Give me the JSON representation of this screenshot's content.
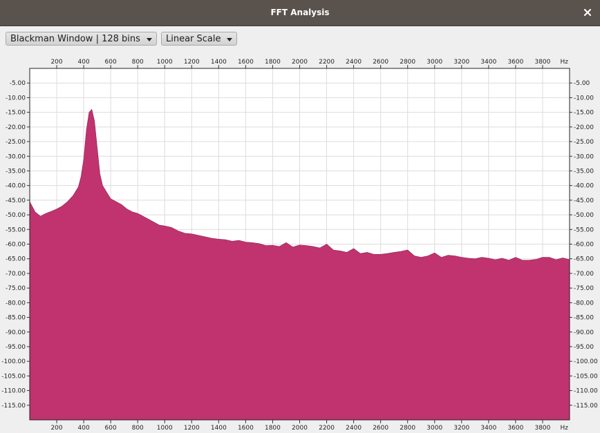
{
  "window": {
    "title": "FFT Analysis",
    "close_icon": "close-icon"
  },
  "toolbar": {
    "window_select": {
      "value": "Blackman Window | 128 bins"
    },
    "scale_select": {
      "value": "Linear Scale"
    }
  },
  "colors": {
    "fill": "#c0336f",
    "grid": "#dcdcdc",
    "titlebar": "#5a524c"
  },
  "chart_data": {
    "type": "area",
    "title": "",
    "xlabel": "",
    "ylabel": "",
    "x_unit": "Hz",
    "xlim": [
      0,
      4000
    ],
    "ylim": [
      -120,
      0
    ],
    "x_ticks": [
      "200",
      "400",
      "600",
      "800",
      "1000",
      "1200",
      "1400",
      "1600",
      "1800",
      "2000",
      "2200",
      "2400",
      "2600",
      "2800",
      "3000",
      "3200",
      "3400",
      "3600",
      "3800"
    ],
    "y_ticks": [
      "-5.00",
      "-10.00",
      "-15.00",
      "-20.00",
      "-25.00",
      "-30.00",
      "-35.00",
      "-40.00",
      "-45.00",
      "-50.00",
      "-55.00",
      "-60.00",
      "-65.00",
      "-70.00",
      "-75.00",
      "-80.00",
      "-85.00",
      "-90.00",
      "-95.00",
      "-100.00",
      "-105.00",
      "-110.00",
      "-115.00"
    ],
    "grid": true,
    "series": [
      {
        "x": [
          0,
          40,
          80,
          120,
          160,
          200,
          240,
          280,
          320,
          340,
          360,
          380,
          400,
          420,
          440,
          460,
          480,
          500,
          520,
          540,
          560,
          580,
          600,
          640,
          680,
          720,
          760,
          800,
          840,
          880,
          920,
          960,
          1000,
          1050,
          1100,
          1150,
          1200,
          1250,
          1300,
          1350,
          1400,
          1450,
          1500,
          1550,
          1600,
          1650,
          1700,
          1750,
          1800,
          1850,
          1900,
          1950,
          2000,
          2050,
          2100,
          2150,
          2200,
          2250,
          2300,
          2350,
          2400,
          2450,
          2500,
          2550,
          2600,
          2650,
          2700,
          2750,
          2800,
          2850,
          2900,
          2950,
          3000,
          3050,
          3100,
          3150,
          3200,
          3250,
          3300,
          3350,
          3400,
          3450,
          3500,
          3550,
          3600,
          3650,
          3700,
          3750,
          3800,
          3850,
          3900,
          3950,
          4000
        ],
        "y": [
          -45.5,
          -49,
          -50.5,
          -49.5,
          -48.8,
          -48,
          -47,
          -45.5,
          -43.5,
          -42,
          -40.5,
          -37,
          -31,
          -21,
          -15,
          -14,
          -18,
          -27,
          -36,
          -40,
          -41.5,
          -43,
          -44.5,
          -45.5,
          -46.5,
          -48,
          -49,
          -49.5,
          -50.5,
          -51.5,
          -52.5,
          -53.5,
          -53.8,
          -54.3,
          -55.5,
          -56.3,
          -56.5,
          -57,
          -57.5,
          -58,
          -58.3,
          -58.5,
          -59,
          -58.7,
          -59.3,
          -59.5,
          -59.8,
          -60.5,
          -60.4,
          -60.8,
          -59.5,
          -61,
          -60.3,
          -60.5,
          -60.8,
          -61.3,
          -60,
          -62,
          -62.3,
          -62.8,
          -61.5,
          -63.2,
          -62.8,
          -63.5,
          -63.5,
          -63.2,
          -62.8,
          -62.5,
          -62,
          -64,
          -64.5,
          -64,
          -63,
          -64.5,
          -63.8,
          -64,
          -64.5,
          -64.8,
          -65,
          -64.5,
          -64.8,
          -65.3,
          -64.8,
          -65.5,
          -64.5,
          -65.5,
          -65.5,
          -65.2,
          -64.5,
          -64.5,
          -65.3,
          -64.7,
          -65.3
        ]
      }
    ]
  }
}
